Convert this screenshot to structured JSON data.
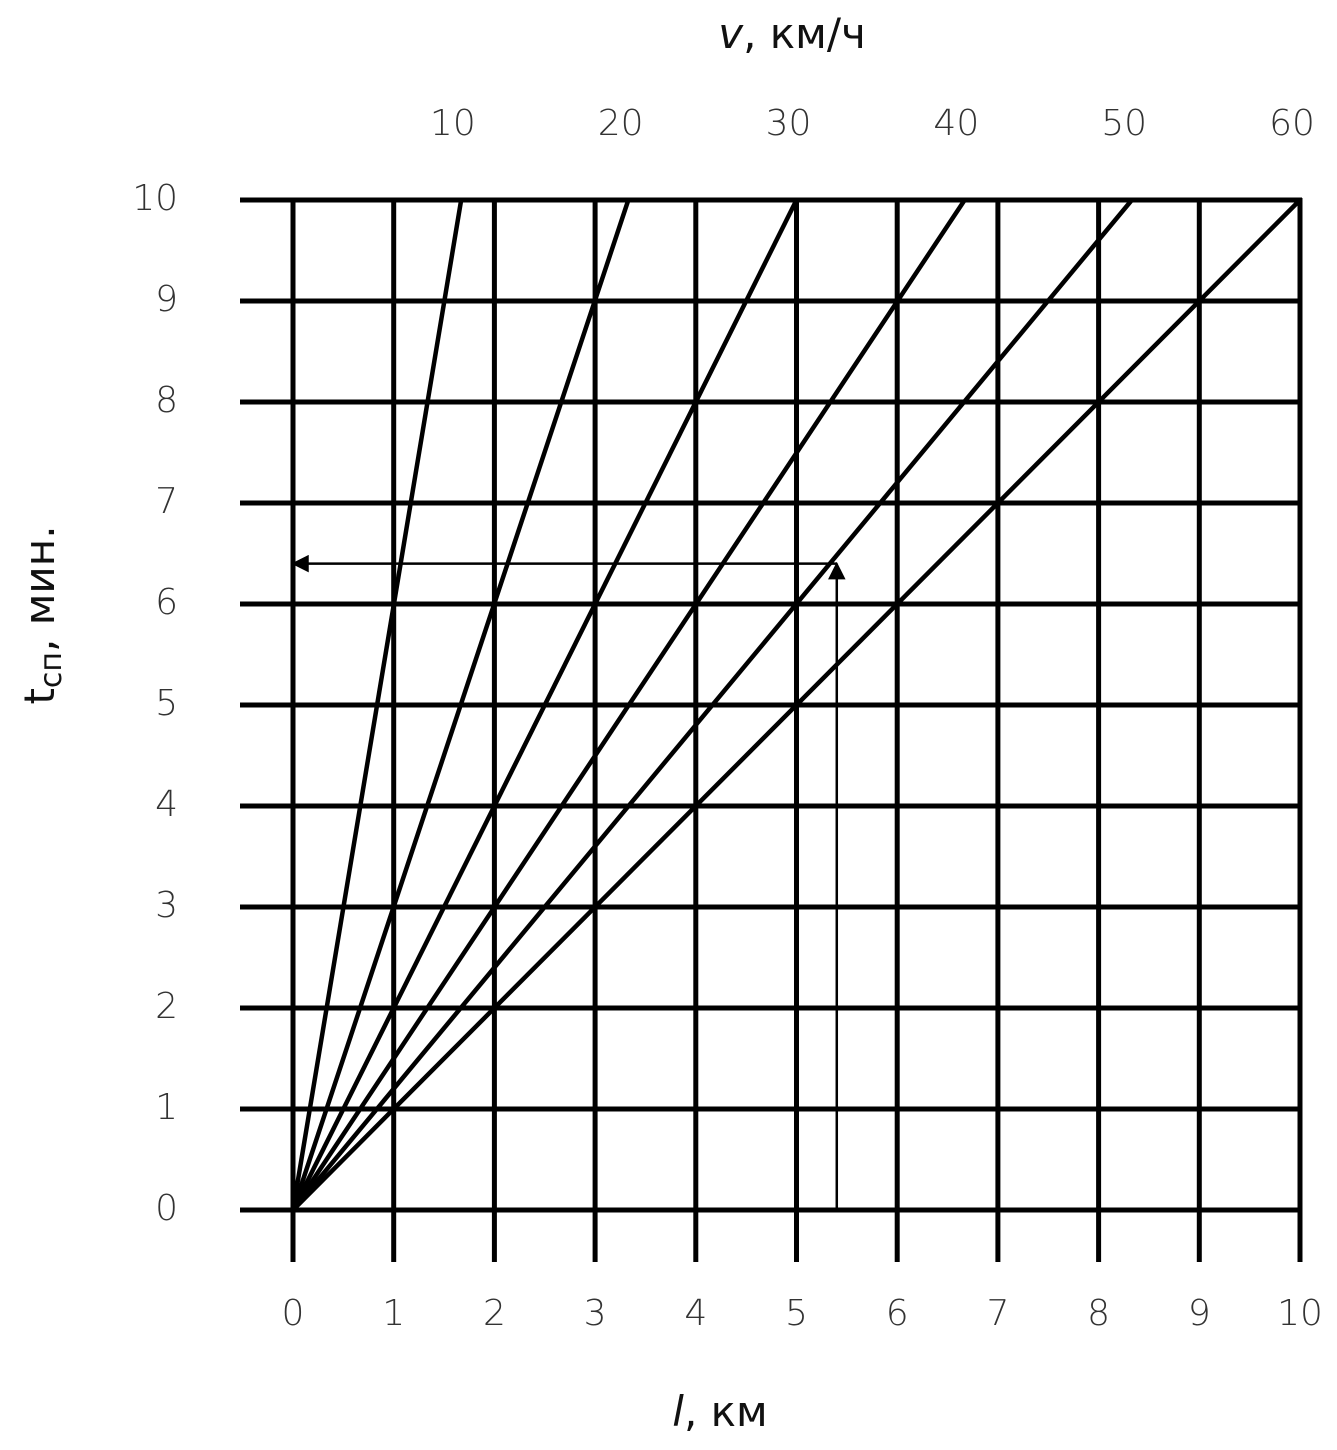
{
  "chart_data": {
    "type": "line",
    "x_label": {
      "var": "l",
      "unit": ", км"
    },
    "x2_label": {
      "var": "v",
      "unit": ", км/ч"
    },
    "y_label": {
      "var": "t",
      "sub": "сп",
      "unit": ", мин."
    },
    "xlim": [
      0,
      10
    ],
    "xticks": [
      0,
      1,
      2,
      3,
      4,
      5,
      6,
      7,
      8,
      9,
      10
    ],
    "x2lim": [
      0,
      60
    ],
    "x2ticks": [
      10,
      20,
      30,
      40,
      50,
      60
    ],
    "ylim": [
      0,
      10
    ],
    "yticks": [
      0,
      1,
      2,
      3,
      4,
      5,
      6,
      7,
      8,
      9,
      10
    ],
    "grid": true,
    "series": [
      {
        "color": "#000000",
        "x": [
          0,
          1.67
        ],
        "values": [
          0,
          10
        ]
      },
      {
        "color": "#000000",
        "x": [
          0,
          3.33
        ],
        "values": [
          0,
          10
        ]
      },
      {
        "color": "#000000",
        "x": [
          0,
          5
        ],
        "values": [
          0,
          10
        ]
      },
      {
        "color": "#000000",
        "x": [
          0,
          6.67
        ],
        "values": [
          0,
          10
        ]
      },
      {
        "color": "#000000",
        "x": [
          0,
          8.33
        ],
        "values": [
          0,
          10
        ]
      },
      {
        "color": "#000000",
        "x": [
          0,
          10
        ],
        "values": [
          0,
          10
        ]
      }
    ],
    "arrows": [
      {
        "x": [
          5.4,
          5.4
        ],
        "values": [
          0,
          6.4
        ]
      },
      {
        "x": [
          5.4,
          0
        ],
        "values": [
          6.4,
          6.4
        ]
      }
    ]
  }
}
